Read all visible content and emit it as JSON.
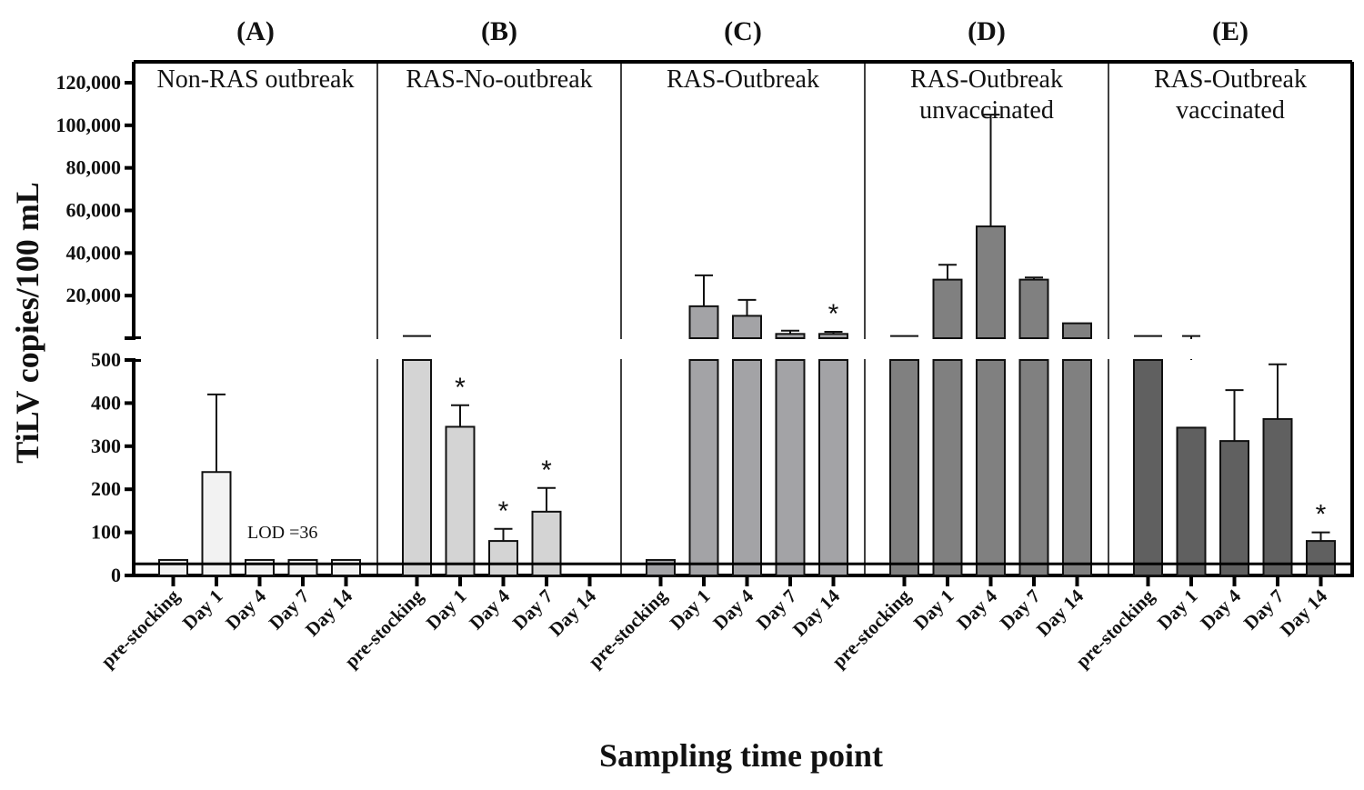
{
  "chart_data": {
    "type": "bar",
    "title": "",
    "xlabel": "Sampling time point",
    "ylabel": "TiLV copies/100 mL",
    "y_axis": {
      "broken": true,
      "lower_range": [
        0,
        500
      ],
      "lower_ticks": [
        "0",
        "100",
        "200",
        "300",
        "400",
        "500"
      ],
      "upper_range": [
        0,
        120000
      ],
      "upper_ticks": [
        "20,000",
        "40,000",
        "60,000",
        "80,000",
        "100,000",
        "120,000"
      ]
    },
    "lod": {
      "label": "LOD =36",
      "value": 36
    },
    "categories": [
      "pre-stocking",
      "Day 1",
      "Day 4",
      "Day 7",
      "Day 14"
    ],
    "panels": [
      {
        "id": "A",
        "panel_label": "(A)",
        "title_lines": [
          "Non-RAS outbreak"
        ],
        "color": "#f2f2f2",
        "values": [
          36,
          240,
          36,
          36,
          36
        ],
        "error_upper": [
          null,
          420,
          null,
          null,
          null
        ],
        "significant": [
          false,
          false,
          false,
          false,
          false
        ]
      },
      {
        "id": "B",
        "panel_label": "(B)",
        "title_lines": [
          "RAS-No-outbreak"
        ],
        "color": "#d4d4d4",
        "values": [
          1000,
          345,
          80,
          148,
          null
        ],
        "error_upper": [
          null,
          395,
          108,
          203,
          null
        ],
        "significant": [
          false,
          true,
          true,
          true,
          false
        ]
      },
      {
        "id": "C",
        "panel_label": "(C)",
        "title_lines": [
          "RAS-Outbreak"
        ],
        "color": "#a3a3a6",
        "values": [
          36,
          15000,
          10500,
          2000,
          2000
        ],
        "error_upper": [
          null,
          29500,
          18000,
          3500,
          3000
        ],
        "significant": [
          false,
          false,
          false,
          false,
          true
        ]
      },
      {
        "id": "D",
        "panel_label": "(D)",
        "title_lines": [
          "RAS-Outbreak",
          "unvaccinated"
        ],
        "color": "#808080",
        "values": [
          1000,
          27500,
          52500,
          27500,
          7000
        ],
        "error_upper": [
          null,
          34500,
          105000,
          28500,
          null
        ],
        "significant": [
          false,
          false,
          false,
          false,
          false
        ]
      },
      {
        "id": "E",
        "panel_label": "(E)",
        "title_lines": [
          "RAS-Outbreak",
          "vaccinated"
        ],
        "color": "#606060",
        "values": [
          1000,
          343,
          312,
          363,
          80
        ],
        "error_upper": [
          null,
          1000,
          430,
          490,
          100
        ],
        "significant": [
          false,
          false,
          false,
          false,
          true
        ]
      }
    ],
    "significance_marker": "*",
    "grid": false,
    "legend": "none"
  }
}
